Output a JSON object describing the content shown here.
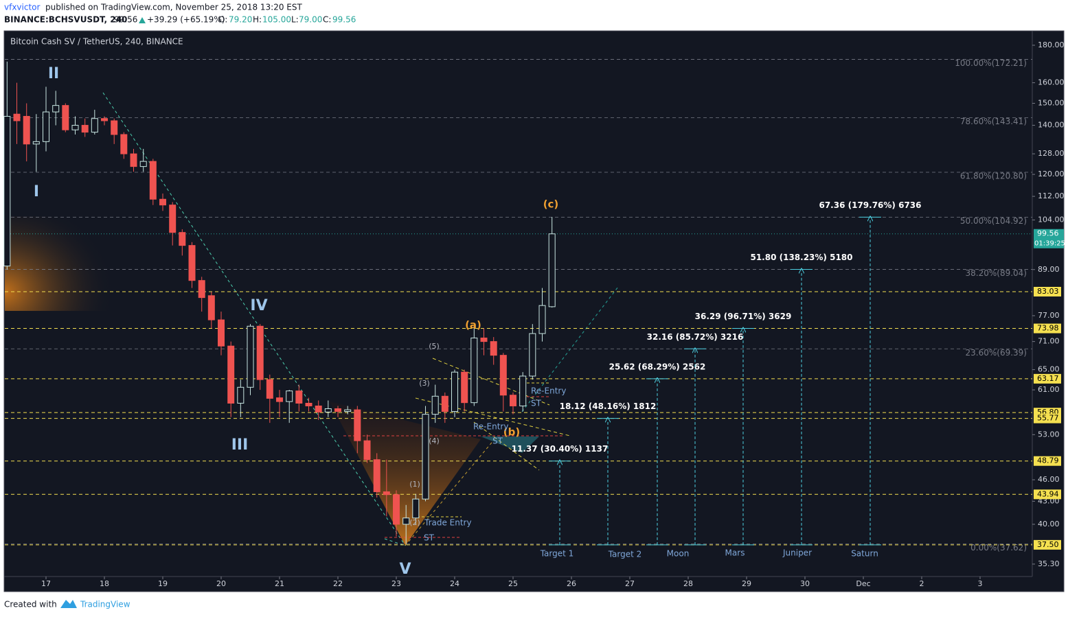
{
  "header": {
    "author": "vfxvictor",
    "published": "published on TradingView.com, November 25, 2018 13:20 EST",
    "symbol": "BINANCE:BCHSVUSDT, 240",
    "last": "99.56",
    "change": "+39.29 (+65.19%)",
    "open_label": "O:",
    "open": "79.20",
    "high_label": "H:",
    "high": "105.00",
    "low_label": "L:",
    "low": "79.00",
    "close_label": "C:",
    "close": "99.56"
  },
  "chart_data": {
    "type": "candlestick",
    "title": "Bitcoin Cash SV / TetherUS, 240, BINANCE",
    "log_scale": true,
    "up_color": "#26a69a",
    "down_color": "#ef5350",
    "x": [
      16.333,
      16.5,
      16.667,
      16.833,
      17,
      17.167,
      17.333,
      17.5,
      17.667,
      17.833,
      18,
      18.167,
      18.333,
      18.5,
      18.667,
      18.833,
      19,
      19.167,
      19.333,
      19.5,
      19.667,
      19.833,
      20,
      20.167,
      20.333,
      20.5,
      20.667,
      20.833,
      21,
      21.167,
      21.333,
      21.5,
      21.667,
      21.833,
      22,
      22.167,
      22.333,
      22.5,
      22.667,
      22.833,
      23,
      23.167,
      23.333,
      23.5,
      23.667,
      23.833,
      24,
      24.167,
      24.333,
      24.5,
      24.667,
      24.833,
      25,
      25.167,
      25.333,
      25.5,
      25.667
    ],
    "open": [
      90,
      145,
      144,
      132,
      133,
      146,
      149,
      138,
      140,
      137,
      143,
      142,
      136,
      128,
      123,
      125,
      111,
      109,
      100,
      96,
      86,
      82,
      76,
      70,
      58.5,
      61.5,
      74.5,
      63,
      59.5,
      58.8,
      60.8,
      58.5,
      58,
      56.9,
      57.5,
      57,
      57.3,
      52,
      49,
      44.3,
      43.9,
      40,
      40.8,
      43.3,
      56.5,
      59.8,
      57,
      64.5,
      58.6,
      71.8,
      71,
      68,
      60,
      58,
      63.7,
      72.8,
      79.2
    ],
    "high": [
      171,
      160,
      150,
      145,
      158,
      156,
      150,
      144,
      143,
      147,
      144,
      143,
      137,
      130,
      130,
      126,
      113,
      110,
      101,
      97,
      87,
      83,
      78,
      71,
      63,
      75,
      75,
      64,
      61,
      61,
      62,
      59.5,
      59,
      59,
      58,
      58,
      58,
      53,
      50,
      49,
      44.5,
      42.5,
      44,
      58,
      62,
      60.5,
      65,
      65,
      74.5,
      74,
      72,
      68.5,
      60.5,
      64.5,
      75,
      84,
      105
    ],
    "low": [
      89,
      132,
      125,
      121,
      129,
      140,
      137,
      136,
      135,
      136,
      140,
      132,
      126,
      121,
      121,
      109,
      107,
      96,
      93,
      84,
      78,
      74,
      68,
      56,
      56,
      60,
      61,
      55,
      56,
      55,
      57,
      57,
      55.5,
      56,
      56,
      56.5,
      50,
      48.5,
      43.5,
      41,
      38.5,
      37.6,
      40,
      43,
      55,
      55,
      56,
      57,
      58,
      68,
      66,
      57,
      56.5,
      57,
      63,
      71,
      79
    ],
    "close": [
      144,
      142,
      132,
      133,
      146,
      149,
      138,
      140,
      137,
      143,
      142,
      136,
      128,
      123,
      125,
      111,
      109,
      100,
      96,
      86,
      81.5,
      76,
      70,
      58.5,
      61.5,
      74.5,
      63,
      59.4,
      58.8,
      60.8,
      58.5,
      58,
      56.9,
      57.5,
      57,
      57.3,
      52,
      49,
      44.3,
      43.9,
      40,
      40.8,
      43.3,
      56.5,
      59.8,
      57,
      64.5,
      58.6,
      71.8,
      71,
      68,
      60,
      58,
      63.7,
      72.8,
      79.5,
      99.56
    ],
    "xlim": [
      16.294,
      33.894
    ],
    "ylim": [
      33.95,
      188.3
    ],
    "xticks": [
      17,
      18,
      19,
      20,
      21,
      22,
      23,
      24,
      25,
      26,
      27,
      28,
      29,
      30,
      {
        "value": 31,
        "label": "Dec"
      },
      {
        "value": 32,
        "label": "2"
      },
      {
        "value": 33,
        "label": "3"
      }
    ],
    "yticks": [
      {
        "value": 180,
        "label": "180.00"
      },
      {
        "value": 160,
        "label": "160.00"
      },
      {
        "value": 150,
        "label": "150.00"
      },
      {
        "value": 140,
        "label": "140.00"
      },
      {
        "value": 128,
        "label": "128.00"
      },
      {
        "value": 120,
        "label": "120.00"
      },
      {
        "value": 112,
        "label": "112.00"
      },
      {
        "value": 104,
        "label": "104.00"
      },
      {
        "value": 89,
        "label": "89.00"
      },
      {
        "value": 77,
        "label": "77.00"
      },
      {
        "value": 71,
        "label": "71.00"
      },
      {
        "value": 65,
        "label": "65.00"
      },
      {
        "value": 61,
        "label": "61.00"
      },
      {
        "value": 53,
        "label": "53.00"
      },
      {
        "value": 46,
        "label": "46.00"
      },
      {
        "value": 43,
        "label": "43.00"
      },
      {
        "value": 40,
        "label": "40.00"
      },
      {
        "value": 35.3,
        "label": "35.30"
      }
    ],
    "levels_color": "#f5e050",
    "levels": [
      {
        "value": 83.03,
        "label": "83.03"
      },
      {
        "value": 73.98,
        "label": "73.98"
      },
      {
        "value": 63.17,
        "label": "63.17"
      },
      {
        "value": 56.8,
        "label": "56.80"
      },
      {
        "value": 55.77,
        "label": "55.77"
      },
      {
        "value": 48.79,
        "label": "48.79"
      },
      {
        "value": 43.94,
        "label": "43.94"
      },
      {
        "value": 37.5,
        "label": "37.50"
      }
    ],
    "fib_color": "#787b86",
    "fib_levels": [
      {
        "value": 172.21,
        "label": "100.00%(172.21)"
      },
      {
        "value": 143.41,
        "label": "78.60%(143.41)"
      },
      {
        "value": 120.8,
        "label": "61.80%(120.80)"
      },
      {
        "value": 104.92,
        "label": "50.00%(104.92)"
      },
      {
        "value": 89.04,
        "label": "38.20%(89.04)"
      },
      {
        "value": 69.39,
        "label": "23.60%(69.39)"
      },
      {
        "value": 37.62,
        "label": "0.00%(37.62)"
      }
    ],
    "last_price": {
      "value": 99.56,
      "label": "99.56"
    },
    "countdown": "01:39:25",
    "target_color": "#4dd0e1",
    "targets": [
      {
        "value": 48.79,
        "label": "11.37 (30.40%) 1137"
      },
      {
        "value": 55.77,
        "label": "18.12 (48.16%) 1812"
      },
      {
        "value": 63.17,
        "label": "25.62 (68.29%) 2562"
      },
      {
        "value": 69.39,
        "label": "32.16 (85.72%) 3216"
      },
      {
        "value": 73.98,
        "label": "36.29 (96.71%) 3629"
      },
      {
        "value": 89.04,
        "label": "51.80 (138.23%) 5180"
      },
      {
        "value": 104.92,
        "label": "67.36 (179.76%) 6736"
      }
    ],
    "target_names": [
      "Target 1",
      "Target 2",
      "Moon",
      "Mars",
      "Juniper",
      "Saturn"
    ],
    "annotations": [
      "I",
      "II",
      "III",
      "IV",
      "V",
      "(a)",
      "(b)",
      "(c)",
      "(1)",
      "(2)",
      "(3)",
      "(4)",
      "(5)",
      "Re-Entry",
      "Re-Entry",
      "ST",
      "ST",
      "ST",
      "Trade Entry"
    ]
  },
  "footer": {
    "created": "Created with",
    "brand": "TradingView"
  }
}
